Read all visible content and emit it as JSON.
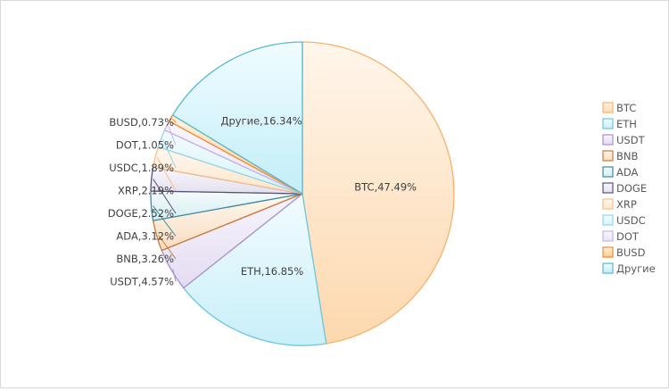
{
  "chart_data": {
    "type": "pie",
    "title": "",
    "legend_position": "right",
    "slices": [
      {
        "name": "BTC",
        "value": 47.49,
        "label": "BTC,47.49%",
        "color": "#f6b36a",
        "fill_light": "#fff6eb",
        "fill_dark": "#fdd8ae"
      },
      {
        "name": "ETH",
        "value": 16.85,
        "label": "ETH,16.85%",
        "color": "#6cc8dd",
        "fill_light": "#f2fcff",
        "fill_dark": "#c9eff9"
      },
      {
        "name": "USDT",
        "value": 4.57,
        "label": "USDT,4.57%",
        "color": "#a894c9",
        "fill_light": "#f8f5fd",
        "fill_dark": "#e4dbf2"
      },
      {
        "name": "BNB",
        "value": 3.26,
        "label": "BNB,3.26%",
        "color": "#c87a3a",
        "fill_light": "#fff8f0",
        "fill_dark": "#f8dcc0"
      },
      {
        "name": "ADA",
        "value": 3.12,
        "label": "ADA,3.12%",
        "color": "#3a8da0",
        "fill_light": "#f5fbfc",
        "fill_dark": "#d5edf2"
      },
      {
        "name": "DOGE",
        "value": 2.52,
        "label": "DOGE,2.52%",
        "color": "#5a4f7a",
        "fill_light": "#f9f8fc",
        "fill_dark": "#e3e0ee"
      },
      {
        "name": "XRP",
        "value": 2.19,
        "label": "XRP,2.19%",
        "color": "#f6c08a",
        "fill_light": "#fff8f0",
        "fill_dark": "#fde5cb"
      },
      {
        "name": "USDC",
        "value": 1.89,
        "label": "USDC,1.89%",
        "color": "#8fd6e6",
        "fill_light": "#f4fcfe",
        "fill_dark": "#d6f3fa"
      },
      {
        "name": "DOT",
        "value": 1.05,
        "label": "DOT,1.05%",
        "color": "#c4b4e2",
        "fill_light": "#faf7fe",
        "fill_dark": "#ebe3f7"
      },
      {
        "name": "BUSD",
        "value": 0.73,
        "label": "BUSD,0.73%",
        "color": "#f08c28",
        "fill_light": "#fff3e3",
        "fill_dark": "#fbc790"
      },
      {
        "name": "Другие",
        "value": 16.34,
        "label": "Другие,16.34%",
        "color": "#56b9cf",
        "fill_light": "#f0fcff",
        "fill_dark": "#c3eef9"
      }
    ]
  }
}
